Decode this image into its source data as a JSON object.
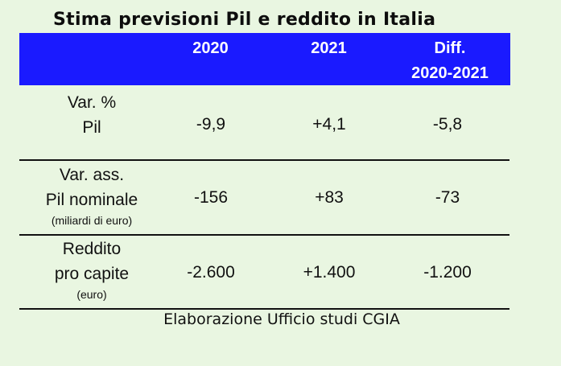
{
  "title": "Stima previsioni Pil e reddito in Italia",
  "header": {
    "col_2020": "2020",
    "col_2021": "2021",
    "col_diff_line1": "Diff.",
    "col_diff_line2": "2020-2021"
  },
  "rows": [
    {
      "label_line1": "Var. %",
      "label_line2": "Pil",
      "label_note": "",
      "v2020": "-9,9",
      "v2021": "+4,1",
      "diff": "-5,8"
    },
    {
      "label_line1": "Var. ass.",
      "label_line2": "Pil nominale",
      "label_note": "(miliardi di euro)",
      "v2020": "-156",
      "v2021": "+83",
      "diff": "-73"
    },
    {
      "label_line1": "Reddito",
      "label_line2": "pro capite",
      "label_note": "(euro)",
      "v2020": "-2.600",
      "v2021": "+1.400",
      "diff": "-1.200"
    }
  ],
  "footer": "Elaborazione Ufficio studi CGIA",
  "colors": {
    "background": "#e9f6e1",
    "header": "#1a1aff",
    "header_text": "#ffffff"
  }
}
